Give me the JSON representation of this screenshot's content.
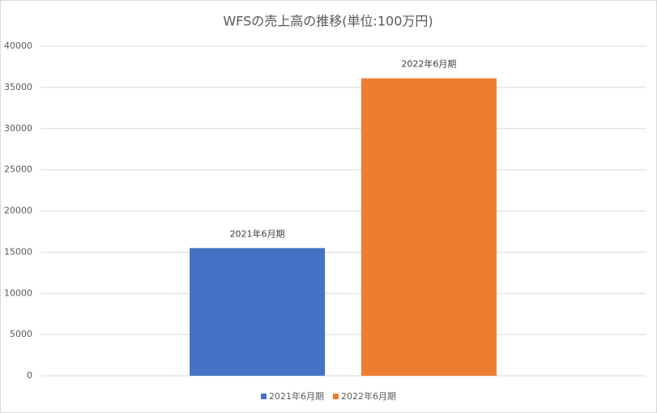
{
  "chart_data": {
    "type": "bar",
    "title": "WFSの売上高の推移(単位:100万円)",
    "categories": [
      null
    ],
    "series": [
      {
        "name": "2021年6月期",
        "color": "#4472c4",
        "values": [
          15500
        ]
      },
      {
        "name": "2022年6月期",
        "color": "#ed7d31",
        "values": [
          36100
        ]
      }
    ],
    "ylim": [
      0,
      40000
    ],
    "yticks": [
      0,
      5000,
      10000,
      15000,
      20000,
      25000,
      30000,
      35000,
      40000
    ],
    "grid": true,
    "legend": "bottom",
    "data_labels": "series_name"
  }
}
